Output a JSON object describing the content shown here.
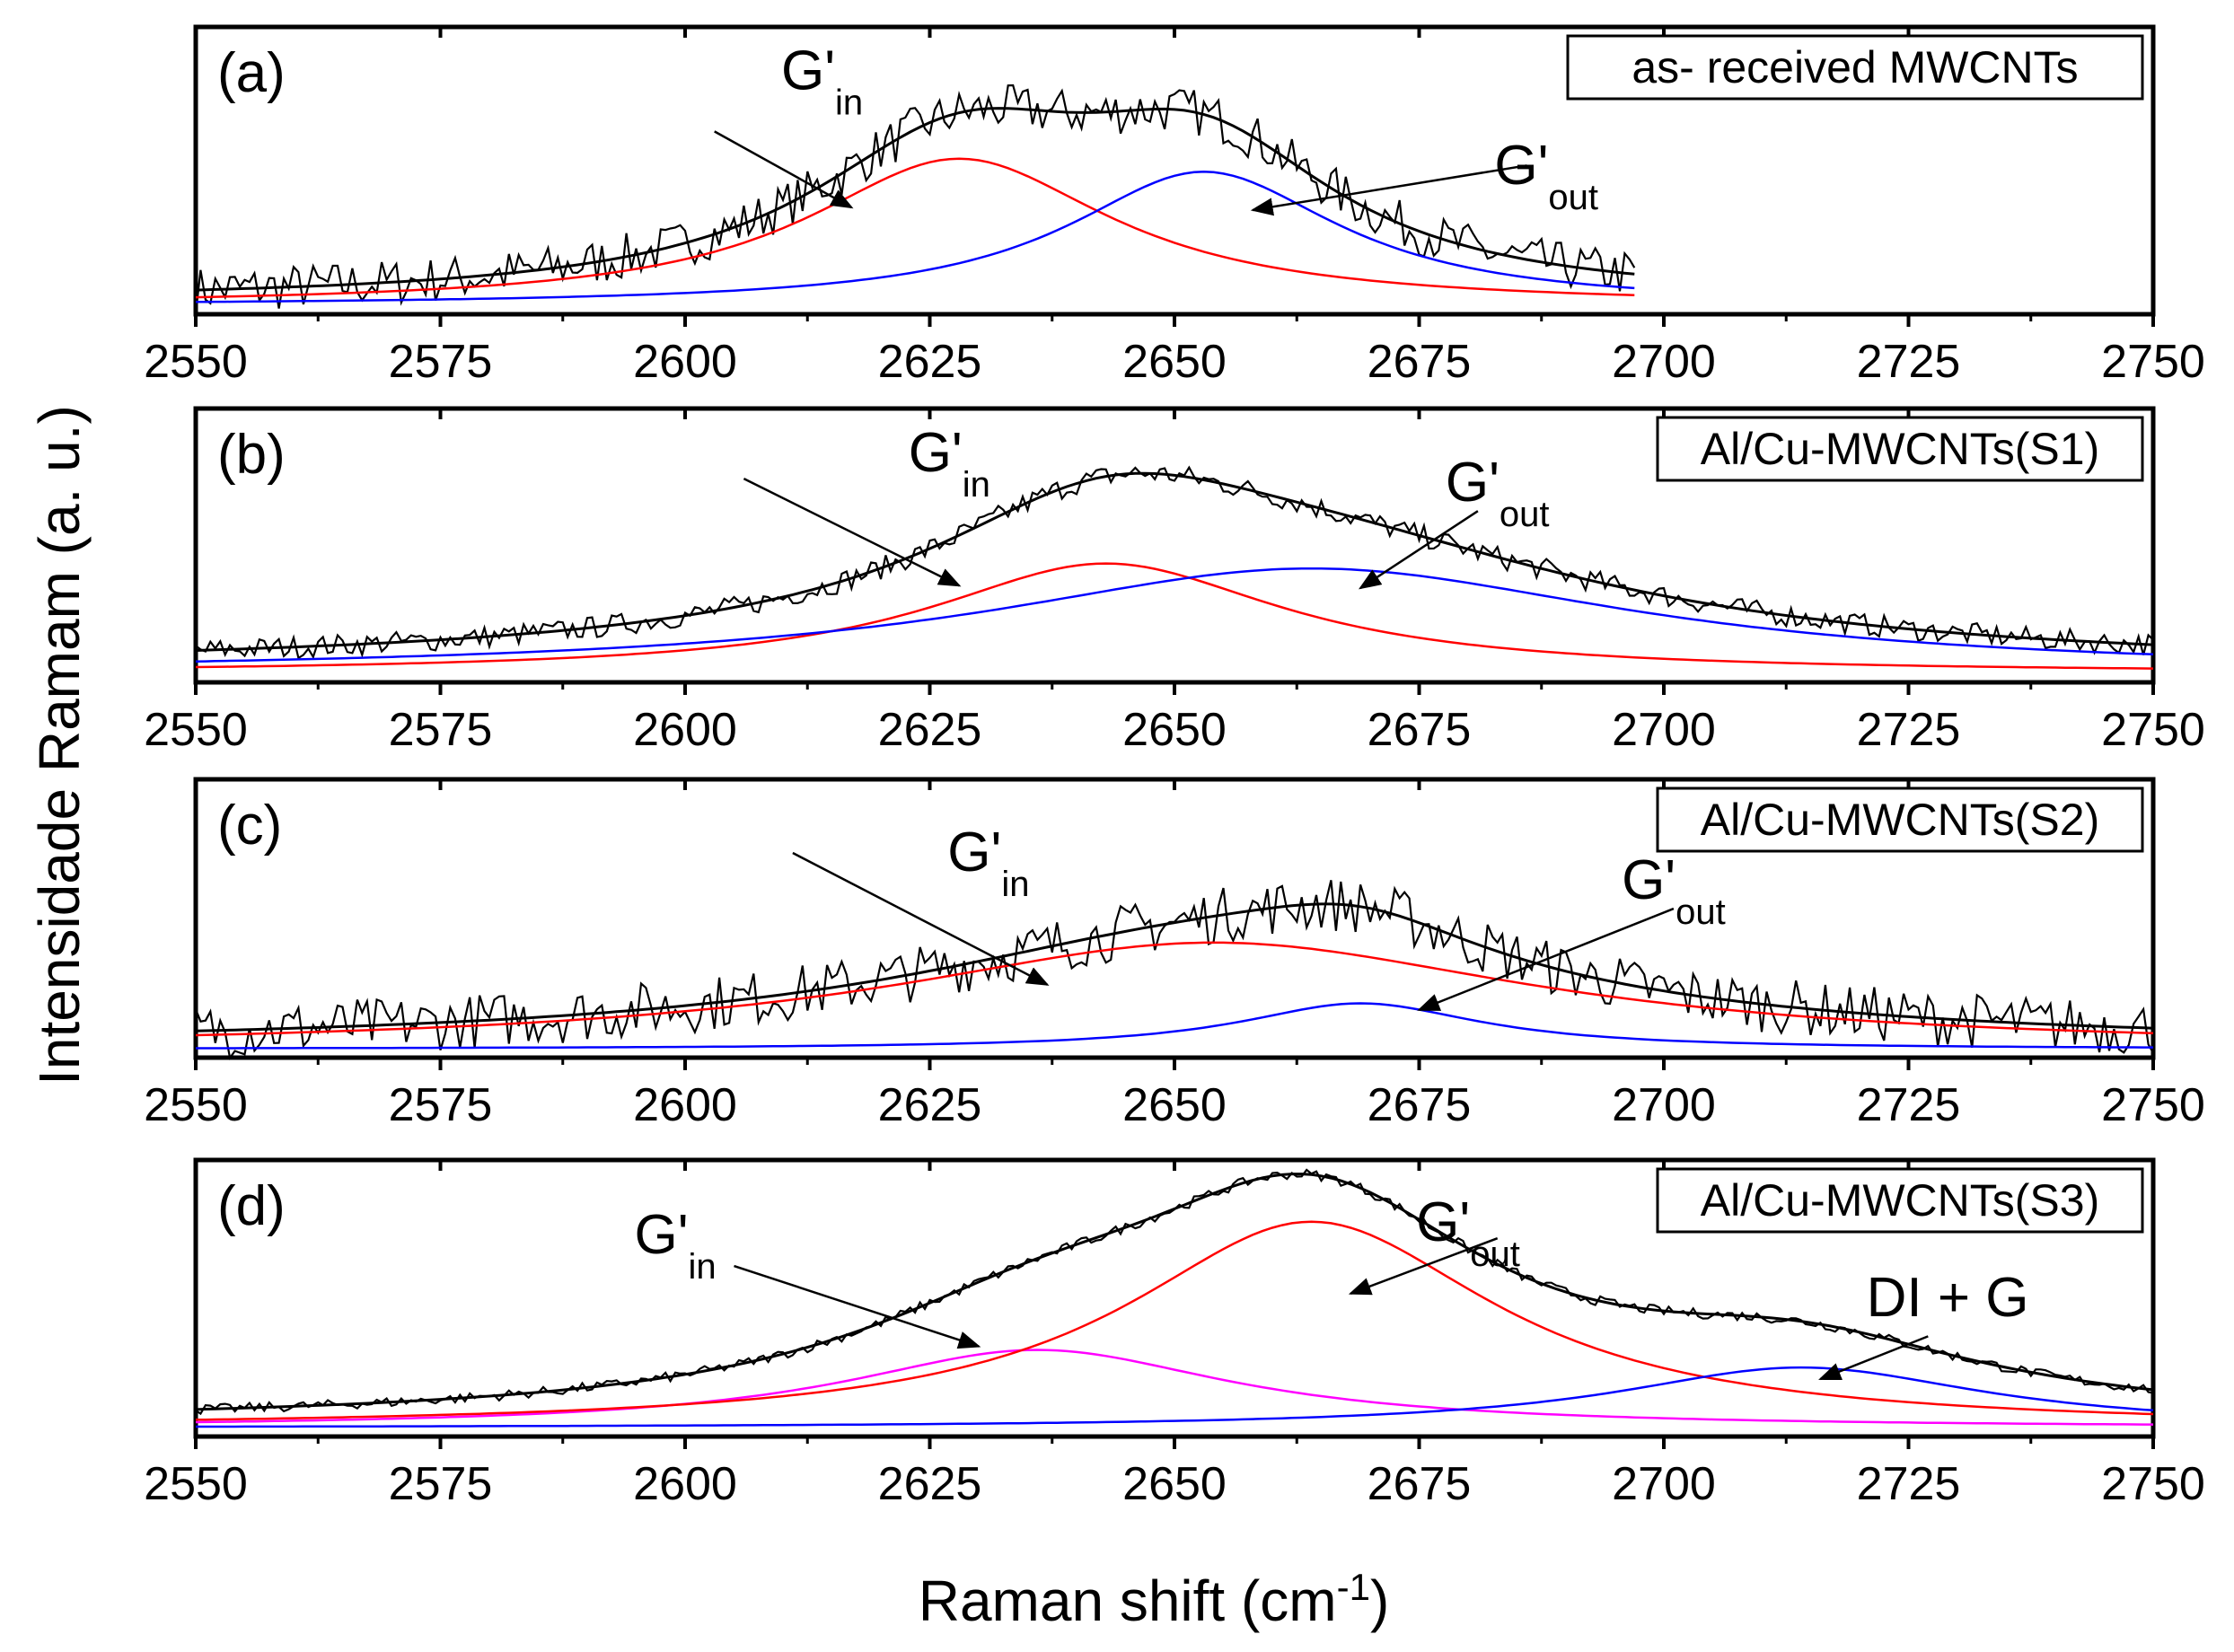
{
  "chart_data": {
    "type": "line",
    "ylabel": "Intensidade Ramam (a. u.)",
    "xlabel": "Raman shift (cm",
    "xlabel_sup": "-1",
    "xlabel_close": ")",
    "xlim": [
      2550,
      2750
    ],
    "xticks": [
      "2550",
      "2575",
      "2600",
      "2625",
      "2650",
      "2675",
      "2700",
      "2725",
      "2750"
    ],
    "series_colors": {
      "data": "#000000",
      "fit": "#000000",
      "G_in": "#ff0000",
      "G_out": "#0000ff",
      "extra": "#ff00ff"
    },
    "panels": [
      {
        "letter": "(a)",
        "legend": "as- received MWCNTs",
        "x_data_range": [
          2550,
          2697
        ],
        "noise": 0.18,
        "baseline": 0.02,
        "components": [
          {
            "name": "G'in",
            "color": "#ff0000",
            "center": 2628,
            "height": 0.56,
            "width": 38
          },
          {
            "name": "G'out",
            "color": "#0000ff",
            "center": 2653,
            "height": 0.51,
            "width": 34
          }
        ],
        "labels": [
          {
            "text": "G'",
            "sub": "in",
            "data_x": 2614,
            "data_y": 0.83
          },
          {
            "text": "G'",
            "sub": "out",
            "data_x": 2688,
            "data_y": 0.47
          }
        ],
        "arrows": [
          {
            "from": [
              2603,
              0.67
            ],
            "to": [
              2617,
              0.38
            ]
          },
          {
            "from": [
              2686,
              0.54
            ],
            "to": [
              2658,
              0.37
            ]
          }
        ]
      },
      {
        "letter": "(b)",
        "legend": "Al/Cu-MWCNTs(S1)",
        "x_data_range": [
          2550,
          2750
        ],
        "noise": 0.09,
        "baseline": 0.03,
        "components": [
          {
            "name": "G'in",
            "color": "#ff0000",
            "center": 2643,
            "height": 0.44,
            "width": 44
          },
          {
            "name": "G'out",
            "color": "#0000ff",
            "center": 2664,
            "height": 0.42,
            "width": 80
          }
        ],
        "labels": [
          {
            "text": "G'",
            "sub": "in",
            "data_x": 2627,
            "data_y": 0.82
          },
          {
            "text": "G'",
            "sub": "out",
            "data_x": 2683,
            "data_y": 0.7
          }
        ],
        "arrows": [
          {
            "from": [
              2606,
              0.79
            ],
            "to": [
              2628,
              0.36
            ]
          },
          {
            "from": [
              2681,
              0.66
            ],
            "to": [
              2669,
              0.35
            ]
          }
        ]
      },
      {
        "letter": "(c)",
        "legend": "Al/Cu-MWCNTs(S2)",
        "x_data_range": [
          2550,
          2750
        ],
        "noise": 0.22,
        "baseline": 0.02,
        "components": [
          {
            "name": "G'in",
            "color": "#ff0000",
            "center": 2654,
            "height": 0.42,
            "width": 80
          },
          {
            "name": "G'out",
            "color": "#0000ff",
            "center": 2669,
            "height": 0.18,
            "width": 30
          }
        ],
        "labels": [
          {
            "text": "G'",
            "sub": "in",
            "data_x": 2631,
            "data_y": 0.71
          },
          {
            "text": "G'",
            "sub": "out",
            "data_x": 2701,
            "data_y": 0.6
          }
        ],
        "arrows": [
          {
            "from": [
              2611,
              0.78
            ],
            "to": [
              2637,
              0.26
            ]
          },
          {
            "from": [
              2701,
              0.56
            ],
            "to": [
              2675,
              0.16
            ]
          }
        ]
      },
      {
        "letter": "(d)",
        "legend": "Al/Cu-MWCNTs(S3)",
        "x_data_range": [
          2550,
          2750
        ],
        "noise": 0.04,
        "baseline": 0.02,
        "components": [
          {
            "name": "G'in",
            "color": "#ff00ff",
            "center": 2636,
            "height": 0.31,
            "width": 48
          },
          {
            "name": "G'out",
            "color": "#ff0000",
            "center": 2664,
            "height": 0.82,
            "width": 46
          },
          {
            "name": "DI + G",
            "color": "#0000ff",
            "center": 2714,
            "height": 0.24,
            "width": 46
          }
        ],
        "labels": [
          {
            "text": "G'",
            "sub": "in",
            "data_x": 2599,
            "data_y": 0.7
          },
          {
            "text": "G'",
            "sub": "out",
            "data_x": 2680,
            "data_y": 0.75
          },
          {
            "text": "DI + G",
            "sub": "",
            "data_x": 2729,
            "data_y": 0.45
          }
        ],
        "arrows": [
          {
            "from": [
              2605,
              0.65
            ],
            "to": [
              2630,
              0.33
            ]
          },
          {
            "from": [
              2683,
              0.76
            ],
            "to": [
              2668,
              0.54
            ]
          },
          {
            "from": [
              2727,
              0.37
            ],
            "to": [
              2716,
              0.2
            ]
          }
        ]
      }
    ]
  }
}
